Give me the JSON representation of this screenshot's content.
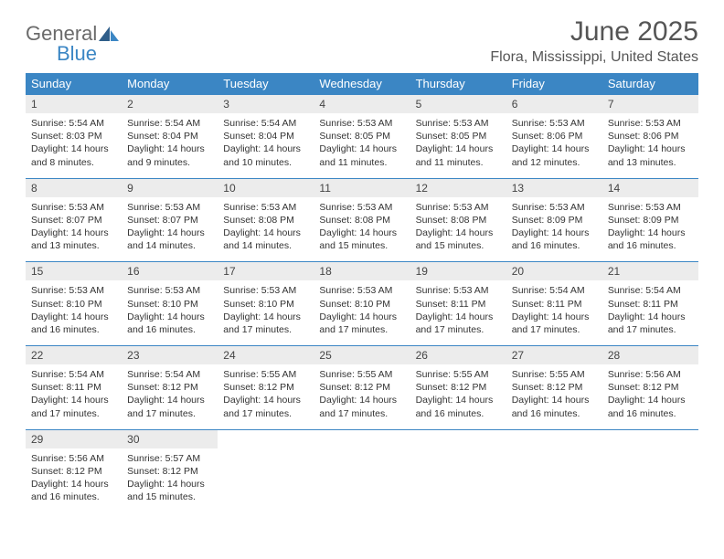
{
  "logo": {
    "part1": "General",
    "part2": "Blue"
  },
  "title": "June 2025",
  "location": "Flora, Mississippi, United States",
  "colors": {
    "header_bg": "#3b86c4",
    "header_text": "#ffffff",
    "daynum_bg": "#ececec",
    "page_bg": "#ffffff",
    "text": "#333333",
    "logo_gray": "#6b6b6b",
    "logo_blue": "#3b86c4"
  },
  "fonts": {
    "title_size_pt": 22,
    "location_size_pt": 12,
    "dow_size_pt": 10,
    "daynum_size_pt": 9,
    "detail_size_pt": 8
  },
  "days_of_week": [
    "Sunday",
    "Monday",
    "Tuesday",
    "Wednesday",
    "Thursday",
    "Friday",
    "Saturday"
  ],
  "weeks": [
    {
      "nums": [
        "1",
        "2",
        "3",
        "4",
        "5",
        "6",
        "7"
      ],
      "details": [
        {
          "sunrise": "Sunrise: 5:54 AM",
          "sunset": "Sunset: 8:03 PM",
          "day1": "Daylight: 14 hours",
          "day2": "and 8 minutes."
        },
        {
          "sunrise": "Sunrise: 5:54 AM",
          "sunset": "Sunset: 8:04 PM",
          "day1": "Daylight: 14 hours",
          "day2": "and 9 minutes."
        },
        {
          "sunrise": "Sunrise: 5:54 AM",
          "sunset": "Sunset: 8:04 PM",
          "day1": "Daylight: 14 hours",
          "day2": "and 10 minutes."
        },
        {
          "sunrise": "Sunrise: 5:53 AM",
          "sunset": "Sunset: 8:05 PM",
          "day1": "Daylight: 14 hours",
          "day2": "and 11 minutes."
        },
        {
          "sunrise": "Sunrise: 5:53 AM",
          "sunset": "Sunset: 8:05 PM",
          "day1": "Daylight: 14 hours",
          "day2": "and 11 minutes."
        },
        {
          "sunrise": "Sunrise: 5:53 AM",
          "sunset": "Sunset: 8:06 PM",
          "day1": "Daylight: 14 hours",
          "day2": "and 12 minutes."
        },
        {
          "sunrise": "Sunrise: 5:53 AM",
          "sunset": "Sunset: 8:06 PM",
          "day1": "Daylight: 14 hours",
          "day2": "and 13 minutes."
        }
      ]
    },
    {
      "nums": [
        "8",
        "9",
        "10",
        "11",
        "12",
        "13",
        "14"
      ],
      "details": [
        {
          "sunrise": "Sunrise: 5:53 AM",
          "sunset": "Sunset: 8:07 PM",
          "day1": "Daylight: 14 hours",
          "day2": "and 13 minutes."
        },
        {
          "sunrise": "Sunrise: 5:53 AM",
          "sunset": "Sunset: 8:07 PM",
          "day1": "Daylight: 14 hours",
          "day2": "and 14 minutes."
        },
        {
          "sunrise": "Sunrise: 5:53 AM",
          "sunset": "Sunset: 8:08 PM",
          "day1": "Daylight: 14 hours",
          "day2": "and 14 minutes."
        },
        {
          "sunrise": "Sunrise: 5:53 AM",
          "sunset": "Sunset: 8:08 PM",
          "day1": "Daylight: 14 hours",
          "day2": "and 15 minutes."
        },
        {
          "sunrise": "Sunrise: 5:53 AM",
          "sunset": "Sunset: 8:08 PM",
          "day1": "Daylight: 14 hours",
          "day2": "and 15 minutes."
        },
        {
          "sunrise": "Sunrise: 5:53 AM",
          "sunset": "Sunset: 8:09 PM",
          "day1": "Daylight: 14 hours",
          "day2": "and 16 minutes."
        },
        {
          "sunrise": "Sunrise: 5:53 AM",
          "sunset": "Sunset: 8:09 PM",
          "day1": "Daylight: 14 hours",
          "day2": "and 16 minutes."
        }
      ]
    },
    {
      "nums": [
        "15",
        "16",
        "17",
        "18",
        "19",
        "20",
        "21"
      ],
      "details": [
        {
          "sunrise": "Sunrise: 5:53 AM",
          "sunset": "Sunset: 8:10 PM",
          "day1": "Daylight: 14 hours",
          "day2": "and 16 minutes."
        },
        {
          "sunrise": "Sunrise: 5:53 AM",
          "sunset": "Sunset: 8:10 PM",
          "day1": "Daylight: 14 hours",
          "day2": "and 16 minutes."
        },
        {
          "sunrise": "Sunrise: 5:53 AM",
          "sunset": "Sunset: 8:10 PM",
          "day1": "Daylight: 14 hours",
          "day2": "and 17 minutes."
        },
        {
          "sunrise": "Sunrise: 5:53 AM",
          "sunset": "Sunset: 8:10 PM",
          "day1": "Daylight: 14 hours",
          "day2": "and 17 minutes."
        },
        {
          "sunrise": "Sunrise: 5:53 AM",
          "sunset": "Sunset: 8:11 PM",
          "day1": "Daylight: 14 hours",
          "day2": "and 17 minutes."
        },
        {
          "sunrise": "Sunrise: 5:54 AM",
          "sunset": "Sunset: 8:11 PM",
          "day1": "Daylight: 14 hours",
          "day2": "and 17 minutes."
        },
        {
          "sunrise": "Sunrise: 5:54 AM",
          "sunset": "Sunset: 8:11 PM",
          "day1": "Daylight: 14 hours",
          "day2": "and 17 minutes."
        }
      ]
    },
    {
      "nums": [
        "22",
        "23",
        "24",
        "25",
        "26",
        "27",
        "28"
      ],
      "details": [
        {
          "sunrise": "Sunrise: 5:54 AM",
          "sunset": "Sunset: 8:11 PM",
          "day1": "Daylight: 14 hours",
          "day2": "and 17 minutes."
        },
        {
          "sunrise": "Sunrise: 5:54 AM",
          "sunset": "Sunset: 8:12 PM",
          "day1": "Daylight: 14 hours",
          "day2": "and 17 minutes."
        },
        {
          "sunrise": "Sunrise: 5:55 AM",
          "sunset": "Sunset: 8:12 PM",
          "day1": "Daylight: 14 hours",
          "day2": "and 17 minutes."
        },
        {
          "sunrise": "Sunrise: 5:55 AM",
          "sunset": "Sunset: 8:12 PM",
          "day1": "Daylight: 14 hours",
          "day2": "and 17 minutes."
        },
        {
          "sunrise": "Sunrise: 5:55 AM",
          "sunset": "Sunset: 8:12 PM",
          "day1": "Daylight: 14 hours",
          "day2": "and 16 minutes."
        },
        {
          "sunrise": "Sunrise: 5:55 AM",
          "sunset": "Sunset: 8:12 PM",
          "day1": "Daylight: 14 hours",
          "day2": "and 16 minutes."
        },
        {
          "sunrise": "Sunrise: 5:56 AM",
          "sunset": "Sunset: 8:12 PM",
          "day1": "Daylight: 14 hours",
          "day2": "and 16 minutes."
        }
      ]
    },
    {
      "nums": [
        "29",
        "30",
        "",
        "",
        "",
        "",
        ""
      ],
      "details": [
        {
          "sunrise": "Sunrise: 5:56 AM",
          "sunset": "Sunset: 8:12 PM",
          "day1": "Daylight: 14 hours",
          "day2": "and 16 minutes."
        },
        {
          "sunrise": "Sunrise: 5:57 AM",
          "sunset": "Sunset: 8:12 PM",
          "day1": "Daylight: 14 hours",
          "day2": "and 15 minutes."
        },
        null,
        null,
        null,
        null,
        null
      ]
    }
  ]
}
